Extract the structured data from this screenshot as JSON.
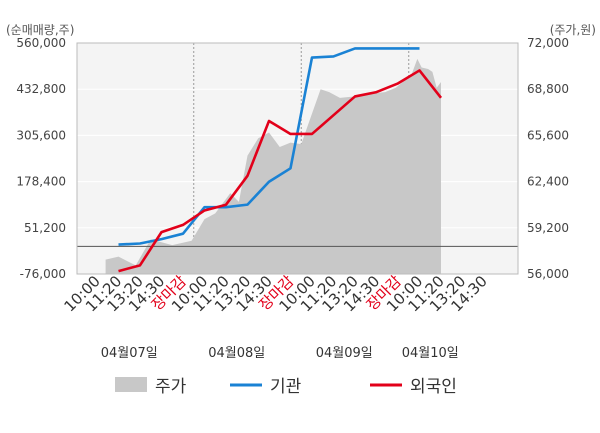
{
  "chart_data": {
    "type": "line",
    "left_axis_title": "(순매매량,주)",
    "right_axis_title": "(주가,원)",
    "left_ticks": [
      "560,000",
      "432,800",
      "305,600",
      "178,400",
      "51,200",
      "-76,000"
    ],
    "right_ticks": [
      "72,000",
      "68,800",
      "65,600",
      "62,400",
      "59,200",
      "56,000"
    ],
    "ylim_left": [
      -76000,
      560000
    ],
    "ylim_right": [
      56000,
      72000
    ],
    "x_labels": [
      "10:00",
      "11:20",
      "13:20",
      "14:30",
      "장마감",
      "10:00",
      "11:20",
      "13:20",
      "14:30",
      "장마감",
      "10:00",
      "11:20",
      "13:20",
      "14:30",
      "장마감",
      "10:00",
      "11:20",
      "13:20",
      "14:30"
    ],
    "x_label_colors": [
      "#333333",
      "#333333",
      "#333333",
      "#333333",
      "#e2001a",
      "#333333",
      "#333333",
      "#333333",
      "#333333",
      "#e2001a",
      "#333333",
      "#333333",
      "#333333",
      "#333333",
      "#e2001a",
      "#333333",
      "#333333",
      "#333333",
      "#333333"
    ],
    "date_labels": [
      {
        "text": "04월07일",
        "at_index": 1.5
      },
      {
        "text": "04월08일",
        "at_index": 6.5
      },
      {
        "text": "04월09일",
        "at_index": 11.5
      },
      {
        "text": "04월10일",
        "at_index": 15.5
      }
    ],
    "day_boundaries_at_index": [
      4.5,
      9.5,
      14.5
    ],
    "series": [
      {
        "name": "기관",
        "axis": "left",
        "color": "#1a82d4",
        "points": [
          [
            1,
            5000
          ],
          [
            2,
            8000
          ],
          [
            3,
            20000
          ],
          [
            4,
            35000
          ],
          [
            5,
            108000
          ],
          [
            6,
            108000
          ],
          [
            7,
            115000
          ],
          [
            8,
            178000
          ],
          [
            9,
            215000
          ],
          [
            10,
            520000
          ],
          [
            11,
            523000
          ],
          [
            12,
            545000
          ],
          [
            13,
            545000
          ],
          [
            14,
            545000
          ],
          [
            15,
            545000
          ]
        ]
      },
      {
        "name": "외국인",
        "axis": "right",
        "color": "#e2001a",
        "points": [
          [
            1,
            56200
          ],
          [
            2,
            56600
          ],
          [
            3,
            58900
          ],
          [
            4,
            59400
          ],
          [
            5,
            60400
          ],
          [
            6,
            60800
          ],
          [
            7,
            62800
          ],
          [
            8,
            66600
          ],
          [
            9,
            65700
          ],
          [
            10,
            65700
          ],
          [
            11,
            67000
          ],
          [
            12,
            68300
          ],
          [
            13,
            68600
          ],
          [
            14,
            69200
          ],
          [
            15,
            70100
          ],
          [
            16,
            68200
          ]
        ]
      }
    ],
    "price_area": {
      "name": "주가",
      "axis": "right",
      "color": "#c8c8c8",
      "points": [
        [
          0.4,
          57000
        ],
        [
          1,
          57200
        ],
        [
          1.8,
          56600
        ],
        [
          2.5,
          58400
        ],
        [
          3.5,
          58000
        ],
        [
          4.4,
          58300
        ],
        [
          5,
          59800
        ],
        [
          5.5,
          60200
        ],
        [
          6.2,
          61600
        ],
        [
          6.6,
          61000
        ],
        [
          7,
          64200
        ],
        [
          7.5,
          65400
        ],
        [
          8,
          65800
        ],
        [
          8.5,
          64800
        ],
        [
          9,
          65100
        ],
        [
          9.5,
          65000
        ],
        [
          10.4,
          68800
        ],
        [
          10.8,
          68600
        ],
        [
          11.3,
          68200
        ],
        [
          12,
          68300
        ],
        [
          12.8,
          68500
        ],
        [
          13.4,
          68600
        ],
        [
          13.9,
          68900
        ],
        [
          14.3,
          69400
        ],
        [
          14.6,
          69700
        ],
        [
          14.9,
          70900
        ],
        [
          15.1,
          70300
        ],
        [
          15.4,
          70200
        ],
        [
          15.6,
          70000
        ],
        [
          15.8,
          68900
        ],
        [
          16,
          69300
        ]
      ],
      "end_index": 16
    },
    "legend": [
      {
        "label": "주가",
        "color": "#c8c8c8",
        "kind": "area"
      },
      {
        "label": "기관",
        "color": "#1a82d4",
        "kind": "line"
      },
      {
        "label": "외국인",
        "color": "#e2001a",
        "kind": "line"
      }
    ],
    "grid": true,
    "legend_position": "bottom"
  }
}
